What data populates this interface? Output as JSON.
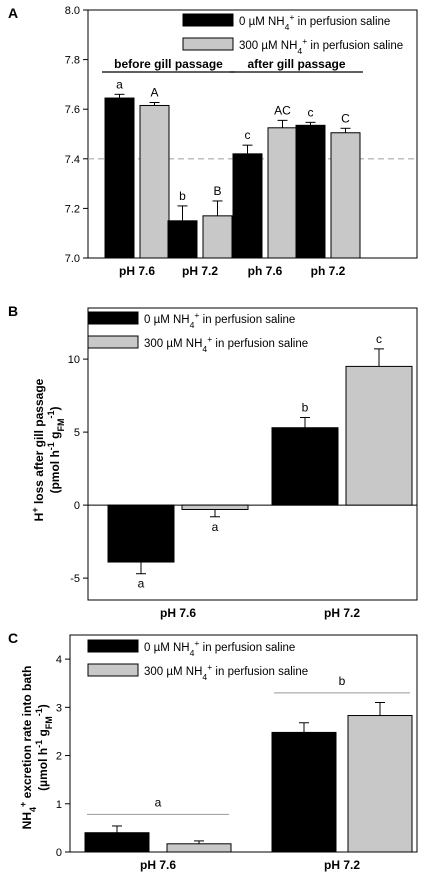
{
  "chart_data": [
    {
      "panel": "A",
      "type": "bar",
      "ylabel": "pH",
      "ylim": [
        7.0,
        8.0
      ],
      "yticks": [
        "7.0",
        "7.2",
        "7.4",
        "7.6",
        "7.8",
        "8.0"
      ],
      "reference_line": 7.4,
      "legend": [
        "0 µM NH₄⁺ in perfusion saline",
        "300 µM NH₄⁺ in perfusion saline"
      ],
      "legend_position": "top-right",
      "group_headers": [
        "before gill passage",
        "after gill passage"
      ],
      "categories": [
        "pH 7.6",
        "pH 7.2",
        "ph 7.6",
        "ph 7.2"
      ],
      "series": [
        {
          "values": [
            7.645,
            7.15,
            7.42,
            7.535
          ],
          "errors": [
            0.015,
            0.06,
            0.035,
            0.012
          ],
          "labels": [
            "a",
            "b",
            "c",
            "c"
          ],
          "color": "#000000"
        },
        {
          "values": [
            7.615,
            7.17,
            7.525,
            7.505
          ],
          "errors": [
            0.012,
            0.06,
            0.03,
            0.018
          ],
          "labels": [
            "A",
            "B",
            "AC",
            "C"
          ],
          "color": "#c8c8c8"
        }
      ]
    },
    {
      "panel": "B",
      "type": "bar",
      "ylabel": "H⁺ loss after gill passage (pmol h⁻¹ g_FM⁻¹)",
      "ylim": [
        -6.5,
        13.5
      ],
      "yticks": [
        "-5",
        "0",
        "5",
        "10"
      ],
      "legend": [
        "0 µM NH₄⁺ in perfusion saline",
        "300 µM NH₄⁺ in perfusion saline"
      ],
      "legend_position": "top-left",
      "categories": [
        "pH 7.6",
        "pH 7.2"
      ],
      "series": [
        {
          "values": [
            -3.9,
            5.3
          ],
          "errors": [
            0.8,
            0.7
          ],
          "labels": [
            "a",
            "b"
          ],
          "color": "#000000"
        },
        {
          "values": [
            -0.3,
            9.5
          ],
          "errors": [
            0.5,
            1.2
          ],
          "labels": [
            "a",
            "c"
          ],
          "color": "#c8c8c8"
        }
      ]
    },
    {
      "panel": "C",
      "type": "bar",
      "ylabel": "NH₄⁺ excretion rate into bath (µmol h⁻¹ g_FM⁻¹)",
      "ylim": [
        0,
        4.5
      ],
      "yticks": [
        "0",
        "1",
        "2",
        "3",
        "4"
      ],
      "legend": [
        "0 µM NH₄⁺ in perfusion saline",
        "300 µM NH₄⁺ in perfusion saline"
      ],
      "legend_position": "top-left",
      "categories": [
        "pH 7.6",
        "pH 7.2"
      ],
      "group_labels": [
        "a",
        "b"
      ],
      "group_label_values": [
        0.78,
        3.3
      ],
      "series": [
        {
          "values": [
            0.4,
            2.48
          ],
          "errors": [
            0.14,
            0.2
          ],
          "color": "#000000"
        },
        {
          "values": [
            0.17,
            2.83
          ],
          "errors": [
            0.06,
            0.27
          ],
          "color": "#c8c8c8"
        }
      ]
    }
  ]
}
